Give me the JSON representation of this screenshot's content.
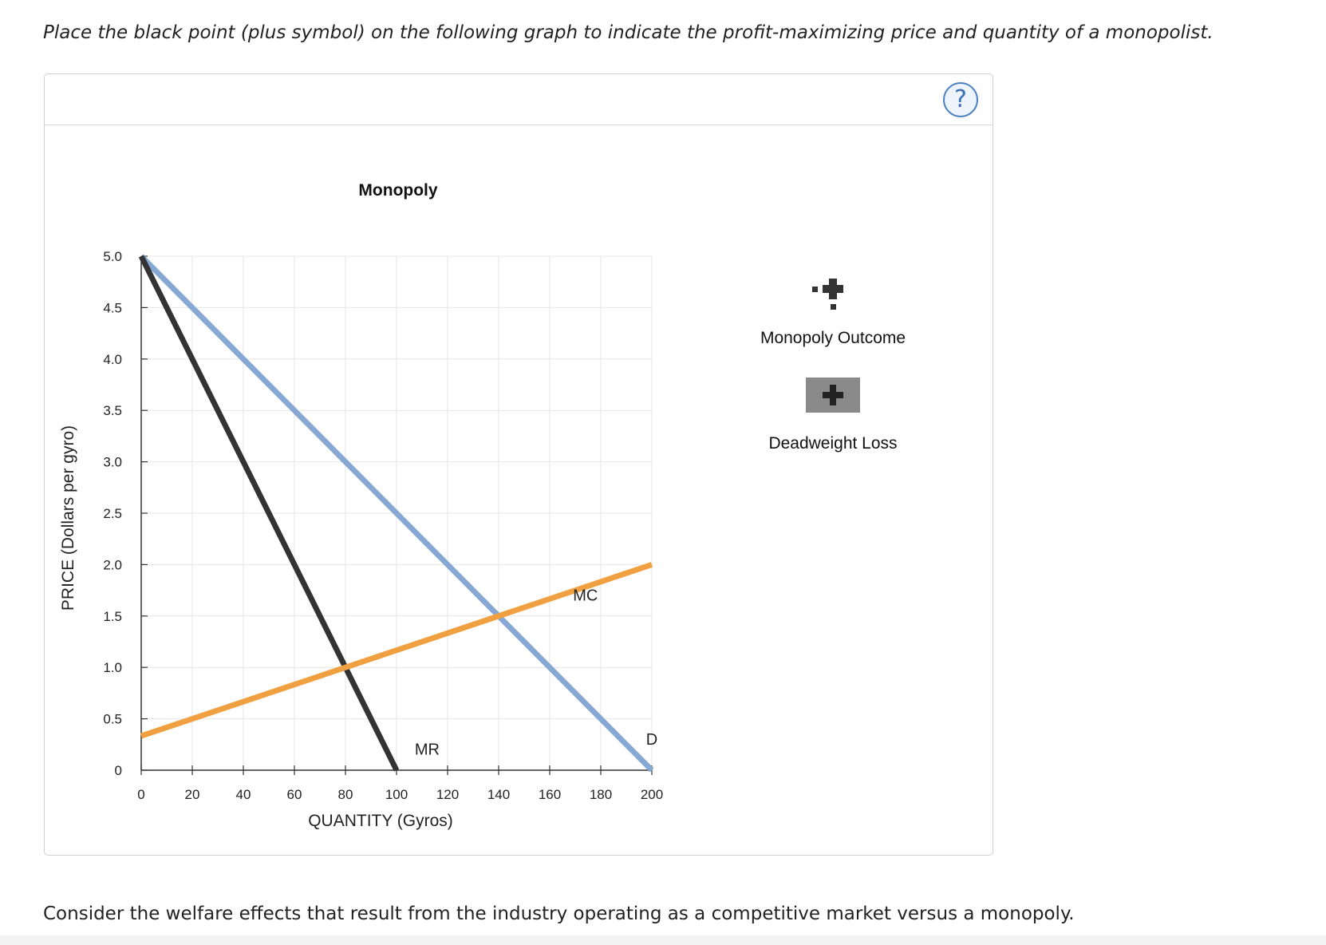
{
  "instruction": "Place the black point (plus symbol) on the following graph to indicate the profit-maximizing price and quantity of a monopolist.",
  "help_label": "?",
  "footer": "Consider the welfare effects that result from the industry operating as a competitive market versus a monopoly.",
  "palette": {
    "demand": "#86a8d3",
    "mr": "#333333",
    "mc": "#f0a040",
    "grid": "#e6e6e6",
    "axis": "#333333",
    "tool_bg": "#8a8a8a"
  },
  "tools": [
    {
      "label": "Monopoly Outcome",
      "icon": "plus-point-icon"
    },
    {
      "label": "Deadweight Loss",
      "icon": "plus-area-icon"
    }
  ],
  "chart_data": {
    "type": "line",
    "title": "Monopoly",
    "xlabel": "QUANTITY (Gyros)",
    "ylabel": "PRICE (Dollars per gyro)",
    "xlim": [
      0,
      200
    ],
    "ylim": [
      0,
      5
    ],
    "xticks": [
      0,
      20,
      40,
      60,
      80,
      100,
      120,
      140,
      160,
      180,
      200
    ],
    "xtick_labels": [
      "0",
      "20",
      "40",
      "60",
      "80",
      "100",
      "120",
      "140",
      "160",
      "180",
      "200"
    ],
    "yticks": [
      0,
      0.5,
      1.0,
      1.5,
      2.0,
      2.5,
      3.0,
      3.5,
      4.0,
      4.5,
      5.0
    ],
    "ytick_labels": [
      "0",
      "0.5",
      "1.0",
      "1.5",
      "2.0",
      "2.5",
      "3.0",
      "3.5",
      "4.0",
      "4.5",
      "5.0"
    ],
    "grid": true,
    "series": [
      {
        "name": "D",
        "label": "D",
        "color_key": "demand",
        "x": [
          0,
          200
        ],
        "y": [
          5,
          0
        ],
        "label_at": [
          200,
          0.25
        ]
      },
      {
        "name": "MR",
        "label": "MR",
        "color_key": "mr",
        "x": [
          0,
          100
        ],
        "y": [
          5,
          0
        ],
        "label_at": [
          112,
          0.15
        ]
      },
      {
        "name": "MC",
        "label": "MC",
        "color_key": "mc",
        "x": [
          0,
          200
        ],
        "y": [
          0.333,
          2
        ],
        "label_at": [
          174,
          1.65
        ]
      }
    ]
  }
}
